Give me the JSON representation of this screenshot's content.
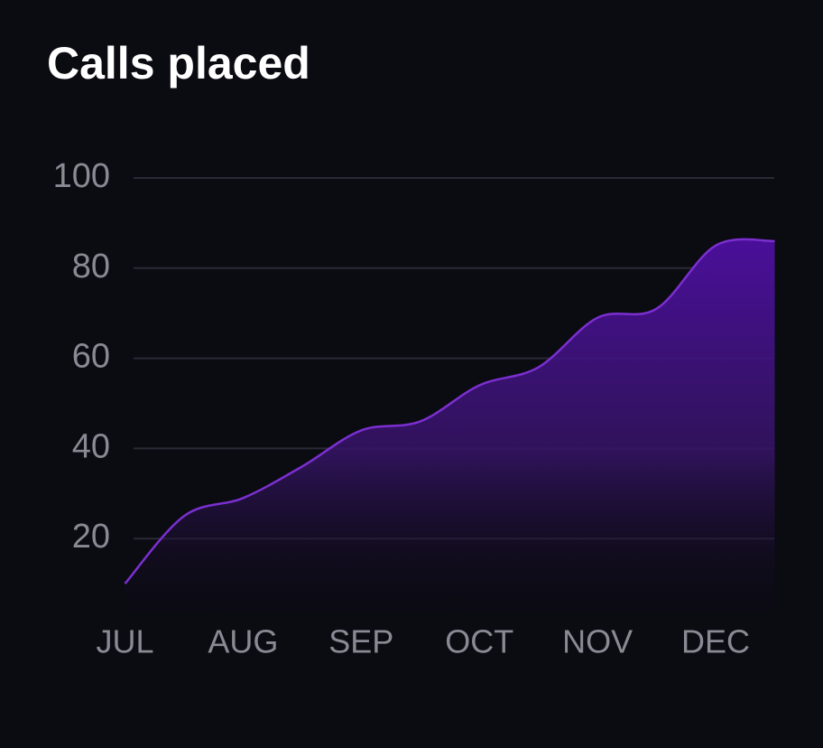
{
  "chart_data": {
    "type": "area",
    "title": "Calls placed",
    "categories": [
      "JUL",
      null,
      "AUG",
      null,
      "SEP",
      null,
      "OCT",
      null,
      "NOV",
      null,
      "DEC",
      null
    ],
    "values": [
      10,
      25,
      29,
      36,
      44,
      46,
      54,
      58,
      69,
      71,
      85,
      86
    ],
    "color": "#7b2fd0",
    "ylim": [
      0,
      100
    ],
    "yticks": [
      20,
      40,
      60,
      80,
      100
    ],
    "grid": true
  }
}
